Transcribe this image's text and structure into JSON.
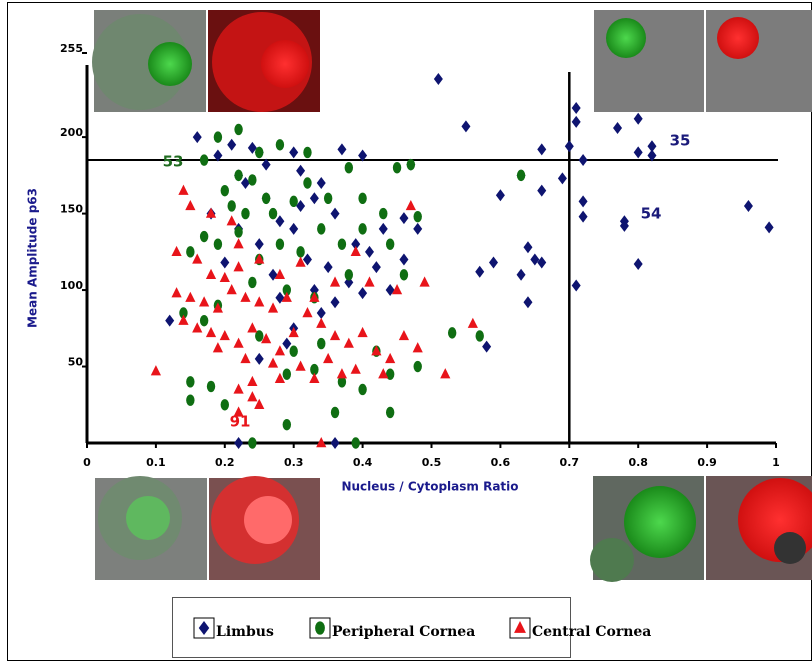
{
  "chart_data": {
    "type": "scatter",
    "x_label": "Nucleus / Cytoplasm Ratio",
    "y_label": "Mean Amplitude p63",
    "xlim": [
      0,
      1
    ],
    "ylim": [
      0,
      255
    ],
    "xticks": [
      0,
      0.1,
      0.2,
      0.3,
      0.4,
      0.5,
      0.6,
      0.7,
      0.8,
      0.9,
      1
    ],
    "yticks": [
      50,
      100,
      150,
      200,
      255
    ],
    "hline": 185,
    "vline": 0.7,
    "annotations": [
      {
        "text": "53",
        "color": "#1f6b1f"
      },
      {
        "text": "35",
        "color": "#1a1a7a"
      },
      {
        "text": "54",
        "color": "#1a1a7a"
      },
      {
        "text": "91",
        "color": "#e8141a"
      }
    ],
    "series": [
      {
        "name": "Limbus",
        "color": "#0e1470",
        "marker": "diamond",
        "x": [
          0.16,
          0.21,
          0.22,
          0.24,
          0.25,
          0.19,
          0.23,
          0.26,
          0.3,
          0.31,
          0.34,
          0.37,
          0.4,
          0.47,
          0.51,
          0.55,
          0.66,
          0.7,
          0.71,
          0.72,
          0.71,
          0.77,
          0.8,
          0.8,
          0.82,
          0.82,
          0.6,
          0.63,
          0.66,
          0.69,
          0.72,
          0.72,
          0.78,
          0.78,
          0.96,
          0.99,
          0.64,
          0.65,
          0.66,
          0.59,
          0.57,
          0.63,
          0.64,
          0.71,
          0.8,
          0.58,
          0.12,
          0.18,
          0.2,
          0.22,
          0.25,
          0.27,
          0.28,
          0.3,
          0.32,
          0.33,
          0.35,
          0.36,
          0.38,
          0.4,
          0.42,
          0.43,
          0.46,
          0.46,
          0.48,
          0.26,
          0.28,
          0.31,
          0.33,
          0.36,
          0.39,
          0.41,
          0.44,
          0.22,
          0.36,
          0.34,
          0.3,
          0.25,
          0.29
        ],
        "values": [
          200,
          195,
          175,
          193,
          190,
          188,
          170,
          182,
          190,
          178,
          170,
          192,
          188,
          182,
          238,
          207,
          192,
          194,
          219,
          185,
          210,
          206,
          212,
          190,
          188,
          194,
          162,
          175,
          165,
          173,
          158,
          148,
          145,
          142,
          155,
          141,
          128,
          120,
          118,
          118,
          112,
          110,
          92,
          103,
          117,
          63,
          80,
          150,
          118,
          140,
          130,
          110,
          95,
          140,
          120,
          100,
          115,
          92,
          105,
          98,
          115,
          140,
          120,
          147,
          140,
          160,
          145,
          155,
          160,
          150,
          130,
          125,
          100,
          0,
          0,
          85,
          75,
          55,
          65
        ]
      },
      {
        "name": "Peripheral Cornea",
        "color": "#0f6e12",
        "marker": "circle",
        "x": [
          0.19,
          0.22,
          0.25,
          0.28,
          0.32,
          0.17,
          0.2,
          0.22,
          0.24,
          0.26,
          0.21,
          0.23,
          0.27,
          0.3,
          0.32,
          0.35,
          0.38,
          0.4,
          0.45,
          0.47,
          0.48,
          0.43,
          0.17,
          0.15,
          0.19,
          0.22,
          0.25,
          0.28,
          0.31,
          0.34,
          0.37,
          0.4,
          0.44,
          0.46,
          0.38,
          0.33,
          0.29,
          0.24,
          0.19,
          0.14,
          0.17,
          0.25,
          0.3,
          0.34,
          0.42,
          0.48,
          0.53,
          0.57,
          0.63,
          0.29,
          0.33,
          0.37,
          0.4,
          0.15,
          0.15,
          0.18,
          0.2,
          0.29,
          0.36,
          0.44,
          0.24,
          0.39,
          0.44
        ],
        "values": [
          200,
          205,
          190,
          195,
          190,
          185,
          165,
          175,
          172,
          160,
          155,
          150,
          150,
          158,
          170,
          160,
          180,
          160,
          180,
          182,
          148,
          150,
          135,
          125,
          130,
          138,
          120,
          130,
          125,
          140,
          130,
          140,
          130,
          110,
          110,
          95,
          100,
          105,
          90,
          85,
          80,
          70,
          60,
          65,
          60,
          50,
          72,
          70,
          175,
          45,
          48,
          40,
          35,
          40,
          28,
          37,
          25,
          12,
          20,
          20,
          0,
          0,
          45
        ]
      },
      {
        "name": "Central Cornea",
        "color": "#e8141a",
        "marker": "triangle",
        "x": [
          0.14,
          0.15,
          0.18,
          0.21,
          0.22,
          0.13,
          0.16,
          0.18,
          0.2,
          0.22,
          0.25,
          0.28,
          0.31,
          0.13,
          0.15,
          0.17,
          0.19,
          0.21,
          0.23,
          0.25,
          0.27,
          0.29,
          0.14,
          0.16,
          0.18,
          0.2,
          0.22,
          0.24,
          0.26,
          0.28,
          0.3,
          0.32,
          0.34,
          0.36,
          0.38,
          0.4,
          0.42,
          0.44,
          0.46,
          0.48,
          0.19,
          0.23,
          0.27,
          0.31,
          0.35,
          0.39,
          0.43,
          0.33,
          0.37,
          0.28,
          0.24,
          0.22,
          0.25,
          0.22,
          0.24,
          0.1,
          0.34,
          0.41,
          0.45,
          0.47,
          0.49,
          0.52,
          0.56,
          0.39,
          0.33,
          0.36
        ],
        "values": [
          165,
          155,
          150,
          145,
          130,
          125,
          120,
          110,
          108,
          115,
          120,
          110,
          118,
          98,
          95,
          92,
          88,
          100,
          95,
          92,
          88,
          95,
          80,
          75,
          72,
          70,
          65,
          75,
          68,
          60,
          72,
          85,
          78,
          70,
          65,
          72,
          60,
          55,
          70,
          62,
          62,
          55,
          52,
          50,
          55,
          48,
          45,
          42,
          45,
          42,
          40,
          35,
          25,
          20,
          30,
          47,
          0,
          105,
          100,
          155,
          105,
          45,
          78,
          125,
          95,
          105
        ]
      }
    ]
  }
}
